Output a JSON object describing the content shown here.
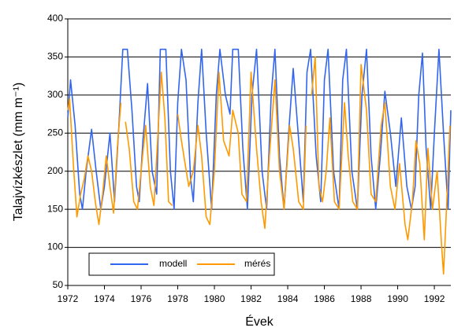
{
  "chart_data": {
    "type": "line",
    "x_label": "Évek",
    "y_label": "Talajvízkészlet (mm m⁻¹)",
    "xlim": [
      1972,
      1992.9
    ],
    "xticks": [
      1972,
      1974,
      1976,
      1978,
      1980,
      1982,
      1984,
      1986,
      1988,
      1990,
      1992
    ],
    "ylim": [
      50,
      400
    ],
    "yticks": [
      50,
      100,
      150,
      200,
      250,
      300,
      350,
      400
    ],
    "grid": true,
    "legend": "bottom left",
    "series": [
      {
        "name": "modell",
        "color": "#3366ee",
        "x": [
          1972.0,
          1972.15,
          1972.4,
          1972.65,
          1972.8,
          1973.0,
          1973.3,
          1973.55,
          1973.8,
          1974.0,
          1974.3,
          1974.55,
          1974.8,
          1975.0,
          1975.25,
          1975.5,
          1975.75,
          1975.9,
          1976.1,
          1976.35,
          1976.6,
          1976.85,
          1977.05,
          1977.35,
          1977.6,
          1977.8,
          1978.0,
          1978.2,
          1978.45,
          1978.7,
          1978.85,
          1979.1,
          1979.3,
          1979.55,
          1979.85,
          1980.1,
          1980.3,
          1980.6,
          1980.85,
          1981.0,
          1981.3,
          1981.55,
          1981.8,
          1982.05,
          1982.3,
          1982.6,
          1982.85,
          1983.1,
          1983.3,
          1983.55,
          1983.8,
          1984.05,
          1984.3,
          1984.6,
          1984.85,
          1985.05,
          1985.25,
          1985.55,
          1985.8,
          1986.0,
          1986.2,
          1986.5,
          1986.8,
          1987.0,
          1987.2,
          1987.5,
          1987.8,
          1988.05,
          1988.3,
          1988.55,
          1988.8,
          1989.05,
          1989.3,
          1989.6,
          1989.9,
          1990.2,
          1990.5,
          1990.75,
          1990.95,
          1991.15,
          1991.35,
          1991.55,
          1991.8,
          1992.0,
          1992.25,
          1992.5,
          1992.75,
          1992.9
        ],
        "values": [
          270,
          320,
          260,
          170,
          150,
          200,
          255,
          200,
          150,
          180,
          250,
          160,
          265,
          360,
          360,
          280,
          180,
          160,
          240,
          315,
          200,
          170,
          360,
          360,
          200,
          150,
          290,
          360,
          320,
          190,
          160,
          290,
          360,
          250,
          150,
          300,
          360,
          300,
          275,
          360,
          360,
          230,
          150,
          300,
          360,
          200,
          150,
          300,
          360,
          220,
          150,
          250,
          335,
          240,
          160,
          330,
          360,
          220,
          160,
          320,
          360,
          200,
          150,
          320,
          360,
          200,
          150,
          300,
          360,
          220,
          150,
          220,
          305,
          250,
          180,
          270,
          180,
          150,
          180,
          300,
          355,
          230,
          150,
          250,
          360,
          250,
          150,
          280
        ]
      },
      {
        "name": "mérés",
        "color": "#ff9900",
        "x": [
          1972.0,
          1972.1,
          1972.3,
          1972.5,
          1972.7,
          1972.9,
          1973.1,
          1973.3,
          1973.5,
          1973.7,
          1973.9,
          1974.1,
          1974.3,
          1974.5,
          1974.7,
          1974.9,
          1975.0,
          1975.15,
          1975.35,
          1975.6,
          1975.8,
          1976.0,
          1976.25,
          1976.5,
          1976.7,
          1976.9,
          1977.1,
          1977.3,
          1977.5,
          1977.7,
          1977.85,
          1978.0,
          1978.2,
          1978.4,
          1978.6,
          1978.85,
          1979.1,
          1979.3,
          1979.55,
          1979.75,
          1980.0,
          1980.25,
          1980.5,
          1980.8,
          1981.0,
          1981.3,
          1981.5,
          1981.75,
          1982.0,
          1982.3,
          1982.55,
          1982.75,
          1983.0,
          1983.3,
          1983.55,
          1983.8,
          1984.1,
          1984.3,
          1984.6,
          1984.85,
          1985.0,
          1985.15,
          1985.3,
          1985.5,
          1985.7,
          1985.9,
          1986.1,
          1986.3,
          1986.55,
          1986.8,
          1987.1,
          1987.3,
          1987.55,
          1987.8,
          1988.0,
          1988.3,
          1988.55,
          1988.8,
          1989.1,
          1989.3,
          1989.6,
          1989.85,
          1990.1,
          1990.4,
          1990.55,
          1990.8,
          1991.0,
          1991.2,
          1991.45,
          1991.65,
          1991.9,
          1992.15,
          1992.4,
          1992.5,
          1992.7,
          1992.85
        ],
        "values": [
          280,
          295,
          210,
          140,
          170,
          190,
          220,
          200,
          160,
          130,
          170,
          220,
          180,
          145,
          230,
          290,
          null,
          265,
          230,
          160,
          150,
          200,
          260,
          180,
          155,
          240,
          330,
          270,
          160,
          155,
          null,
          275,
          240,
          210,
          180,
          200,
          260,
          220,
          140,
          130,
          200,
          330,
          240,
          220,
          280,
          250,
          170,
          160,
          330,
          230,
          160,
          125,
          220,
          320,
          200,
          150,
          260,
          230,
          160,
          150,
          260,
          null,
          300,
          350,
          180,
          160,
          200,
          270,
          160,
          150,
          290,
          220,
          160,
          150,
          340,
          280,
          170,
          160,
          260,
          290,
          180,
          150,
          210,
          130,
          110,
          160,
          240,
          210,
          110,
          230,
          150,
          200,
          100,
          65,
          170,
          260
        ]
      }
    ]
  }
}
